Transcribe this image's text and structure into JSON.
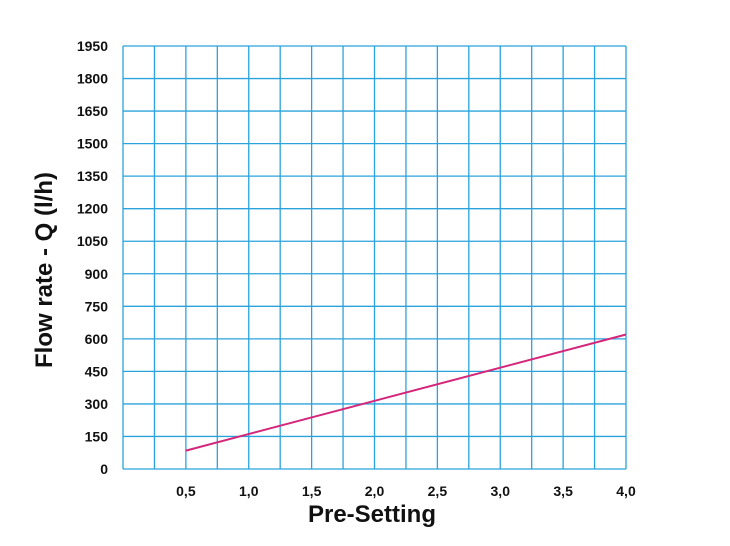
{
  "chart_data": {
    "type": "line",
    "title": "",
    "xlabel": "Pre-Setting",
    "ylabel": "Flow rate - Q (l/h)",
    "xlim": [
      0,
      4.0
    ],
    "ylim": [
      0,
      1950
    ],
    "x_ticks": [
      0.5,
      1.0,
      1.5,
      2.0,
      2.5,
      3.0,
      3.5,
      4.0
    ],
    "x_tick_labels": [
      "0,5",
      "1,0",
      "1,5",
      "2,0",
      "2,5",
      "3,0",
      "3,5",
      "4,0"
    ],
    "y_ticks": [
      0,
      150,
      300,
      450,
      600,
      750,
      900,
      1050,
      1200,
      1350,
      1500,
      1650,
      1800,
      1950
    ],
    "y_tick_labels": [
      "0",
      "150",
      "300",
      "450",
      "600",
      "750",
      "900",
      "1050",
      "1200",
      "1350",
      "1500",
      "1650",
      "1800",
      "1950"
    ],
    "grid": true,
    "colors": {
      "grid": "#2aa3dc",
      "line": "#d4267a",
      "text": "#111111"
    },
    "series": [
      {
        "x": [
          0.5,
          4.0
        ],
        "y": [
          85,
          620
        ]
      }
    ]
  }
}
